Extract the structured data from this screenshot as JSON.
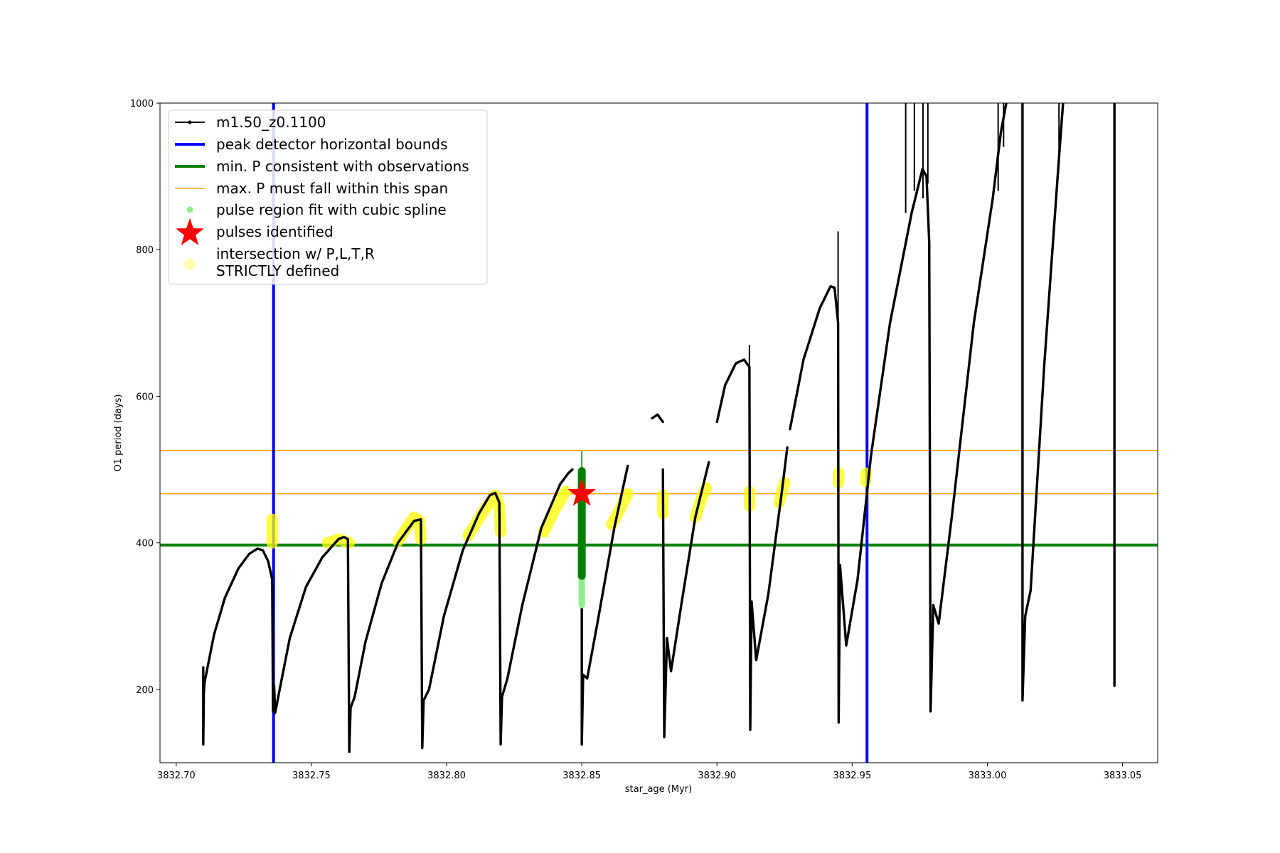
{
  "chart_data": {
    "type": "line",
    "title": "",
    "xlabel": "star_age (Myr)",
    "ylabel": "O1 period (days)",
    "xlim": [
      3832.694,
      3833.063
    ],
    "ylim": [
      100,
      1000
    ],
    "xticks": [
      3832.7,
      3832.75,
      3832.8,
      3832.85,
      3832.9,
      3832.95,
      3833.0,
      3833.05
    ],
    "xtick_labels": [
      "3832.70",
      "3832.75",
      "3832.80",
      "3832.85",
      "3832.90",
      "3832.95",
      "3833.00",
      "3833.05"
    ],
    "yticks": [
      200,
      400,
      600,
      800,
      1000
    ],
    "ytick_labels": [
      "200",
      "400",
      "600",
      "800",
      "1000"
    ],
    "grid": false,
    "legend_position": "upper-left",
    "legend": [
      "m1.50_z0.1100",
      "peak detector horizontal bounds",
      "min. P consistent with observations",
      "max. P must fall within this span",
      "pulse region fit with cubic spline",
      "pulses identified",
      "intersection w/ P,L,T,R\nSTRICTLY defined"
    ],
    "colors": {
      "track": "#000000",
      "bounds": "#0000ff",
      "min_p": "#008000",
      "max_p_span": "#ffa500",
      "spline": "#90ee90",
      "pulse": "#ff0000",
      "intersection": "#ffff00"
    },
    "series_name": "m1.50_z0.1100",
    "track_segments": [
      [
        [
          3832.71,
          230
        ],
        [
          3832.71,
          125
        ],
        [
          3832.7102,
          195
        ],
        [
          3832.7105,
          210
        ],
        [
          3832.714,
          275
        ],
        [
          3832.718,
          325
        ],
        [
          3832.723,
          365
        ],
        [
          3832.727,
          385
        ],
        [
          3832.73,
          392
        ],
        [
          3832.732,
          390
        ],
        [
          3832.734,
          375
        ],
        [
          3832.7355,
          350
        ],
        [
          3832.7358,
          170
        ],
        [
          3832.7362,
          205
        ],
        [
          3832.7366,
          168
        ],
        [
          3832.738,
          195
        ],
        [
          3832.742,
          270
        ],
        [
          3832.748,
          340
        ],
        [
          3832.754,
          380
        ],
        [
          3832.76,
          405
        ],
        [
          3832.762,
          408
        ],
        [
          3832.7635,
          405
        ],
        [
          3832.764,
          115
        ],
        [
          3832.7645,
          175
        ],
        [
          3832.766,
          190
        ],
        [
          3832.77,
          265
        ],
        [
          3832.776,
          345
        ],
        [
          3832.782,
          400
        ],
        [
          3832.788,
          430
        ],
        [
          3832.7905,
          432
        ],
        [
          3832.791,
          120
        ],
        [
          3832.7915,
          185
        ],
        [
          3832.7935,
          200
        ],
        [
          3832.799,
          300
        ],
        [
          3832.806,
          390
        ],
        [
          3832.812,
          440
        ],
        [
          3832.816,
          465
        ],
        [
          3832.818,
          468
        ],
        [
          3832.8195,
          455
        ],
        [
          3832.82,
          125
        ],
        [
          3832.8205,
          190
        ],
        [
          3832.8225,
          215
        ],
        [
          3832.828,
          315
        ],
        [
          3832.835,
          420
        ],
        [
          3832.842,
          480
        ],
        [
          3832.845,
          495
        ],
        [
          3832.8465,
          500
        ]
      ],
      [
        [
          3832.85,
          490
        ],
        [
          3832.85,
          125
        ],
        [
          3832.8505,
          220
        ],
        [
          3832.852,
          215
        ],
        [
          3832.856,
          295
        ],
        [
          3832.862,
          420
        ],
        [
          3832.867,
          505
        ]
      ],
      [
        [
          3832.88,
          500
        ],
        [
          3832.8805,
          135
        ],
        [
          3832.8815,
          270
        ],
        [
          3832.883,
          225
        ],
        [
          3832.887,
          320
        ],
        [
          3832.892,
          435
        ],
        [
          3832.897,
          510
        ]
      ],
      [
        [
          3832.876,
          570
        ],
        [
          3832.878,
          575
        ],
        [
          3832.88,
          565
        ]
      ],
      [
        [
          3832.9,
          565
        ],
        [
          3832.903,
          615
        ],
        [
          3832.907,
          645
        ],
        [
          3832.91,
          650
        ],
        [
          3832.912,
          640
        ],
        [
          3832.9123,
          145
        ],
        [
          3832.9128,
          320
        ],
        [
          3832.9145,
          240
        ],
        [
          3832.919,
          330
        ],
        [
          3832.924,
          470
        ],
        [
          3832.926,
          530
        ]
      ],
      [
        [
          3832.927,
          555
        ],
        [
          3832.932,
          650
        ],
        [
          3832.938,
          720
        ],
        [
          3832.942,
          750
        ],
        [
          3832.9435,
          748
        ],
        [
          3832.9448,
          700
        ],
        [
          3832.945,
          155
        ],
        [
          3832.9455,
          370
        ],
        [
          3832.9478,
          260
        ],
        [
          3832.952,
          350
        ],
        [
          3832.957,
          520
        ],
        [
          3832.964,
          700
        ],
        [
          3832.972,
          850
        ],
        [
          3832.976,
          910
        ],
        [
          3832.9775,
          900
        ],
        [
          3832.9785,
          810
        ],
        [
          3832.979,
          170
        ],
        [
          3832.98,
          315
        ],
        [
          3832.982,
          290
        ],
        [
          3832.987,
          440
        ],
        [
          3832.995,
          700
        ],
        [
          3833.002,
          870
        ],
        [
          3833.005,
          960
        ],
        [
          3833.007,
          1000
        ]
      ],
      [
        [
          3833.013,
          1000
        ],
        [
          3833.013,
          185
        ],
        [
          3833.014,
          300
        ],
        [
          3833.016,
          335
        ],
        [
          3833.021,
          640
        ],
        [
          3833.026,
          900
        ],
        [
          3833.028,
          1000
        ]
      ],
      [
        [
          3833.047,
          1000
        ],
        [
          3833.047,
          205
        ]
      ]
    ],
    "track_spikes": [
      [
        3832.9698,
        1000,
        850
      ],
      [
        3832.973,
        1000,
        880
      ],
      [
        3832.9762,
        1000,
        870
      ],
      [
        3832.978,
        1000,
        890
      ],
      [
        3833.004,
        1000,
        880
      ],
      [
        3833.006,
        1000,
        940
      ],
      [
        3833.0265,
        1000,
        920
      ],
      [
        3832.912,
        670,
        560
      ],
      [
        3832.9448,
        825,
        610
      ]
    ],
    "bounds_x": [
      3832.736,
      3832.9555
    ],
    "min_p": 397,
    "max_p_span": [
      467,
      526
    ],
    "spline_points": {
      "x": 3832.85,
      "y_low": 315,
      "y_high": 498
    },
    "pulse_vline": {
      "x": 3832.85,
      "y_low": 500,
      "y_high": 525
    },
    "pulses_identified": [
      [
        3832.85,
        467
      ]
    ],
    "intersection_segments": [
      [
        [
          3832.7355,
          400
        ],
        [
          3832.7355,
          432
        ]
      ],
      [
        [
          3832.756,
          400
        ],
        [
          3832.76,
          405
        ],
        [
          3832.764,
          400
        ]
      ],
      [
        [
          3832.782,
          402
        ],
        [
          3832.786,
          425
        ],
        [
          3832.788,
          435
        ],
        [
          3832.79,
          430
        ],
        [
          3832.7905,
          405
        ]
      ],
      [
        [
          3832.808,
          410
        ],
        [
          3832.814,
          445
        ],
        [
          3832.818,
          465
        ],
        [
          3832.8195,
          450
        ],
        [
          3832.82,
          415
        ]
      ],
      [
        [
          3832.836,
          415
        ],
        [
          3832.84,
          445
        ],
        [
          3832.844,
          470
        ]
      ],
      [
        [
          3832.861,
          425
        ],
        [
          3832.864,
          445
        ],
        [
          3832.867,
          467
        ]
      ],
      [
        [
          3832.88,
          440
        ],
        [
          3832.88,
          465
        ]
      ],
      [
        [
          3832.892,
          435
        ],
        [
          3832.894,
          458
        ],
        [
          3832.896,
          475
        ]
      ],
      [
        [
          3832.912,
          450
        ],
        [
          3832.912,
          470
        ]
      ],
      [
        [
          3832.923,
          455
        ],
        [
          3832.924,
          470
        ],
        [
          3832.925,
          482
        ]
      ],
      [
        [
          3832.945,
          482
        ],
        [
          3832.945,
          495
        ]
      ],
      [
        [
          3832.955,
          484
        ],
        [
          3832.9552,
          495
        ]
      ]
    ]
  }
}
